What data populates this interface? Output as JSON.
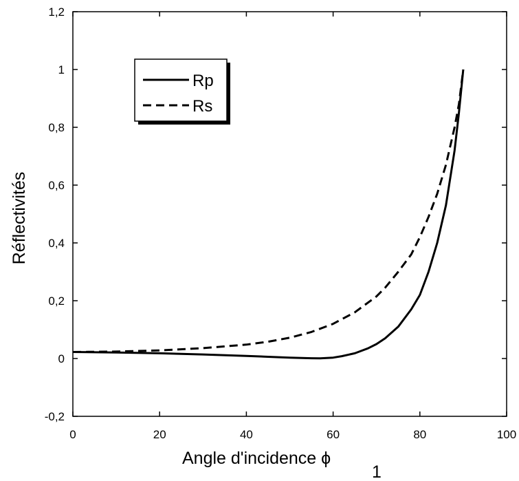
{
  "chart_data": {
    "type": "line",
    "title": "",
    "xlabel": "Angle d'incidence ϕ",
    "xlabel_subscript": "1",
    "ylabel": "Réflectivités",
    "xlim": [
      0,
      100
    ],
    "ylim": [
      -0.2,
      1.2
    ],
    "x_ticks": [
      "0",
      "20",
      "40",
      "60",
      "80",
      "100"
    ],
    "x_tick_values": [
      0,
      20,
      40,
      60,
      80,
      100
    ],
    "y_ticks": [
      "-0,2",
      "0",
      "0,2",
      "0,4",
      "0,6",
      "0,8",
      "1",
      "1,2"
    ],
    "y_tick_values": [
      -0.2,
      0,
      0.2,
      0.4,
      0.6,
      0.8,
      1.0,
      1.2
    ],
    "grid": false,
    "legend_position": "top-left",
    "series": [
      {
        "name": "Rp",
        "style": "solid",
        "color": "#000000",
        "x": [
          0,
          10,
          20,
          30,
          40,
          45,
          50,
          55,
          57,
          60,
          62,
          65,
          68,
          70,
          72,
          75,
          78,
          80,
          82,
          84,
          86,
          88,
          89,
          90
        ],
        "y": [
          0.0225,
          0.021,
          0.018,
          0.014,
          0.009,
          0.006,
          0.003,
          0.001,
          0.0005,
          0.003,
          0.008,
          0.018,
          0.035,
          0.05,
          0.07,
          0.11,
          0.17,
          0.22,
          0.3,
          0.4,
          0.53,
          0.72,
          0.85,
          1.0
        ]
      },
      {
        "name": "Rs",
        "style": "dashed",
        "color": "#000000",
        "x": [
          0,
          10,
          20,
          30,
          40,
          45,
          50,
          55,
          60,
          65,
          70,
          72,
          75,
          78,
          80,
          82,
          84,
          86,
          88,
          89,
          90
        ],
        "y": [
          0.0225,
          0.024,
          0.028,
          0.036,
          0.048,
          0.058,
          0.072,
          0.092,
          0.12,
          0.16,
          0.215,
          0.245,
          0.3,
          0.36,
          0.42,
          0.49,
          0.57,
          0.67,
          0.8,
          0.88,
          1.0
        ]
      }
    ]
  }
}
